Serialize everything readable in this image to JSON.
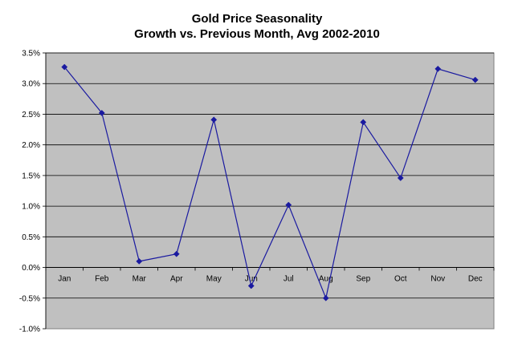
{
  "chart_data": {
    "type": "line",
    "title": "Gold Price Seasonality",
    "subtitle": "Growth vs. Previous Month, Avg 2002-2010",
    "xlabel": "",
    "ylabel": "",
    "categories": [
      "Jan",
      "Feb",
      "Mar",
      "Apr",
      "May",
      "Jun",
      "Jul",
      "Aug",
      "Sep",
      "Oct",
      "Nov",
      "Dec"
    ],
    "series": [
      {
        "values": [
          3.27,
          2.52,
          0.1,
          0.22,
          2.41,
          -0.3,
          1.02,
          -0.5,
          2.37,
          1.46,
          3.24,
          3.06
        ]
      }
    ],
    "ylim": [
      -1.0,
      3.5
    ],
    "yticks": [
      -1.0,
      -0.5,
      0.0,
      0.5,
      1.0,
      1.5,
      2.0,
      2.5,
      3.0,
      3.5
    ],
    "ytick_labels": [
      "-1.0%",
      "-0.5%",
      "0.0%",
      "0.5%",
      "1.0%",
      "1.5%",
      "2.0%",
      "2.5%",
      "3.0%",
      "3.5%"
    ],
    "grid": true,
    "legend": "none",
    "colors": {
      "line": "#1a1aa0",
      "plot_background": "#c0c0c0",
      "grid": "#000000"
    }
  }
}
